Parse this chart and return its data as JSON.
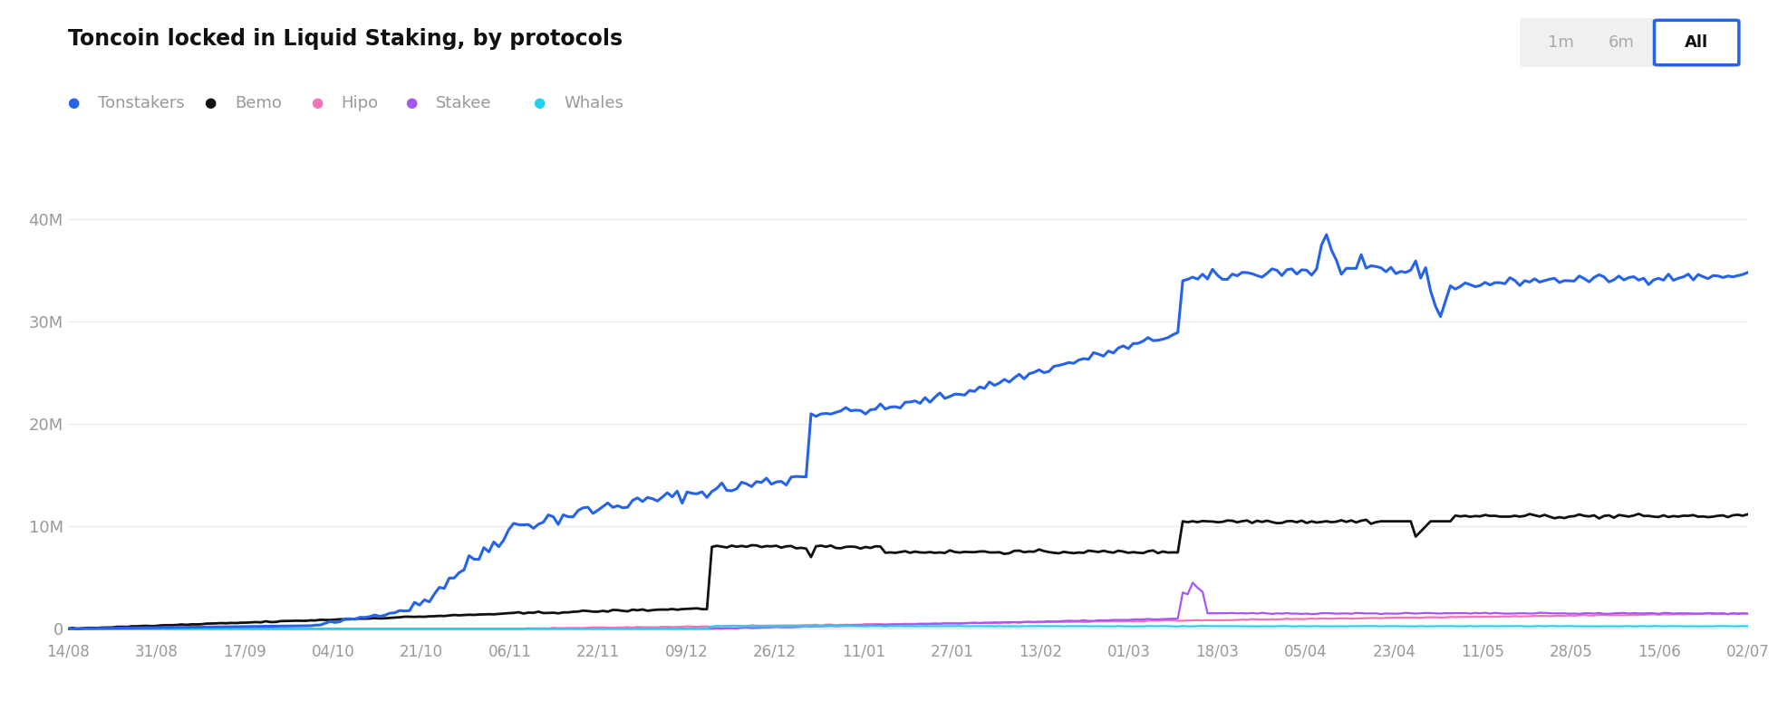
{
  "title": "Toncoin locked in Liquid Staking, by protocols",
  "background_color": "#ffffff",
  "grid_color": "#e8e8e8",
  "ylabel_color": "#999999",
  "xlabel_color": "#999999",
  "title_color": "#111111",
  "legend_color": "#999999",
  "yticks": [
    0,
    10000000,
    20000000,
    30000000,
    40000000
  ],
  "ytick_labels": [
    "0",
    "10M",
    "20M",
    "30M",
    "40M"
  ],
  "xtick_labels": [
    "14/08",
    "31/08",
    "17/09",
    "04/10",
    "21/10",
    "06/11",
    "22/11",
    "09/12",
    "26/12",
    "11/01",
    "27/01",
    "13/02",
    "01/03",
    "18/03",
    "05/04",
    "23/04",
    "11/05",
    "28/05",
    "15/06",
    "02/07"
  ],
  "series": {
    "Tonstakers": {
      "color": "#2563eb",
      "linewidth": 2.2
    },
    "Bemo": {
      "color": "#111111",
      "linewidth": 2.0
    },
    "Hipo": {
      "color": "#f472b6",
      "linewidth": 1.6
    },
    "Stakee": {
      "color": "#a855f7",
      "linewidth": 1.6
    },
    "Whales": {
      "color": "#22d3ee",
      "linewidth": 1.6
    }
  },
  "btn_bg_color": "#f0f0f0",
  "btn_active_border": "#2563eb",
  "btn_active_text": "#111111",
  "btn_inactive_text": "#aaaaaa"
}
